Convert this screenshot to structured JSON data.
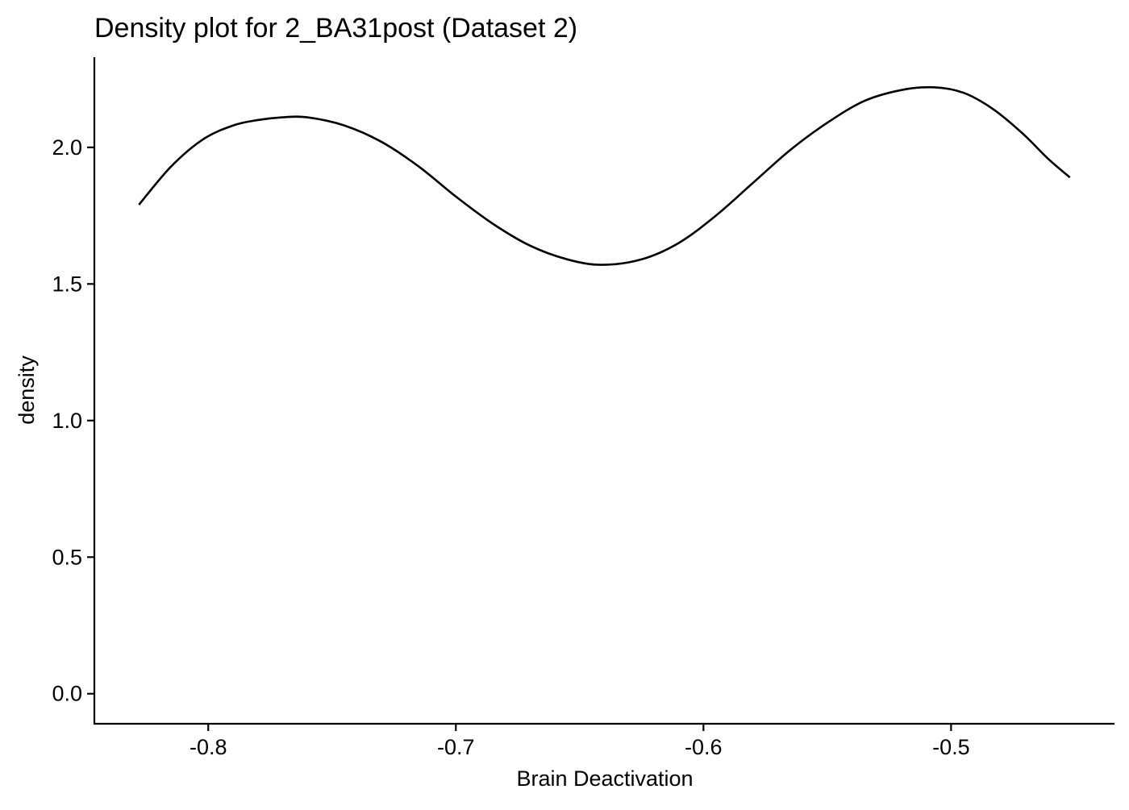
{
  "chart_data": {
    "type": "line",
    "title": "Density plot for 2_BA31post (Dataset 2)",
    "xlabel": "Brain Deactivation",
    "ylabel": "density",
    "xlim": [
      -0.846,
      -0.434
    ],
    "ylim": [
      -0.11,
      2.33
    ],
    "x_ticks": [
      -0.8,
      -0.7,
      -0.6,
      -0.5
    ],
    "x_tick_labels": [
      "-0.8",
      "-0.7",
      "-0.6",
      "-0.5"
    ],
    "y_ticks": [
      0.0,
      0.5,
      1.0,
      1.5,
      2.0
    ],
    "y_tick_labels": [
      "0.0",
      "0.5",
      "1.0",
      "1.5",
      "2.0"
    ],
    "grid": false,
    "legend": "none",
    "series": [
      {
        "color": "#000000",
        "x": [
          -0.828,
          -0.815,
          -0.802,
          -0.79,
          -0.78,
          -0.77,
          -0.76,
          -0.745,
          -0.73,
          -0.715,
          -0.7,
          -0.685,
          -0.67,
          -0.655,
          -0.641,
          -0.625,
          -0.61,
          -0.595,
          -0.58,
          -0.565,
          -0.55,
          -0.535,
          -0.52,
          -0.507,
          -0.495,
          -0.483,
          -0.471,
          -0.461,
          -0.452
        ],
        "y": [
          1.79,
          1.93,
          2.03,
          2.08,
          2.1,
          2.11,
          2.11,
          2.08,
          2.02,
          1.93,
          1.82,
          1.72,
          1.64,
          1.59,
          1.57,
          1.59,
          1.65,
          1.75,
          1.87,
          1.99,
          2.09,
          2.17,
          2.21,
          2.22,
          2.2,
          2.14,
          2.05,
          1.96,
          1.89
        ]
      }
    ]
  }
}
